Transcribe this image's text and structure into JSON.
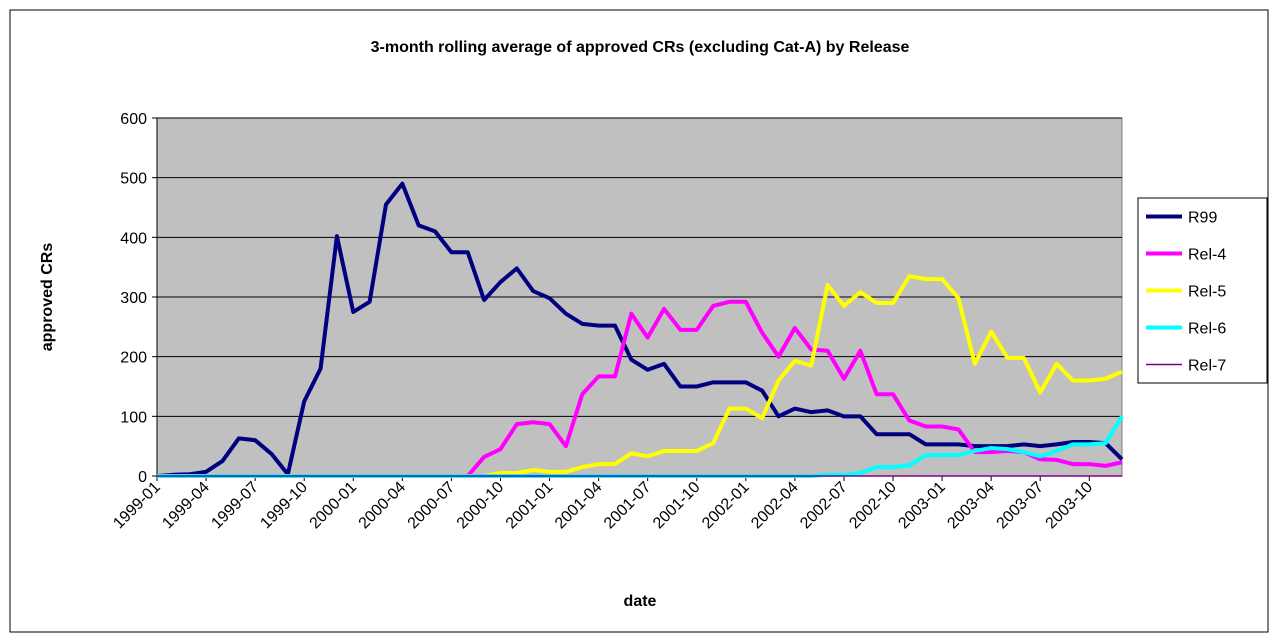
{
  "chart_data": {
    "type": "line",
    "title": "3-month rolling average of approved CRs (excluding Cat-A) by Release",
    "x_label": "date",
    "y_label": "approved CRs",
    "categories": [
      "1999-01",
      null,
      null,
      "1999-04",
      null,
      null,
      "1999-07",
      null,
      null,
      "1999-10",
      null,
      null,
      "2000-01",
      null,
      null,
      "2000-04",
      null,
      null,
      "2000-07",
      null,
      null,
      "2000-10",
      null,
      null,
      "2001-01",
      null,
      null,
      "2001-04",
      null,
      null,
      "2001-07",
      null,
      null,
      "2001-10",
      null,
      null,
      "2002-01",
      null,
      null,
      "2002-04",
      null,
      null,
      "2002-07",
      null,
      null,
      "2002-10",
      null,
      null,
      "2003-01",
      null,
      null,
      "2003-04",
      null,
      null,
      "2003-07",
      null,
      null,
      "2003-10",
      null,
      null
    ],
    "ylim": [
      0,
      600
    ],
    "yticks": [
      0,
      100,
      200,
      300,
      400,
      500,
      600
    ],
    "grid": true,
    "legend": "right",
    "series": [
      {
        "name": "R99",
        "color": "#000080",
        "width": 4,
        "values": [
          0,
          2,
          3,
          7,
          25,
          63,
          60,
          37,
          3,
          125,
          180,
          402,
          275,
          292,
          455,
          490,
          420,
          410,
          375,
          375,
          295,
          325,
          348,
          310,
          298,
          272,
          255,
          252,
          252,
          195,
          178,
          188,
          150,
          150,
          157,
          157,
          157,
          143,
          100,
          113,
          107,
          110,
          100,
          100,
          70,
          70,
          70,
          53,
          53,
          53,
          50,
          50,
          50,
          53,
          50,
          53,
          57,
          57,
          55,
          28
        ]
      },
      {
        "name": "Rel-4",
        "color": "#ff00ff",
        "width": 4,
        "values": [
          0,
          0,
          0,
          0,
          0,
          0,
          0,
          0,
          0,
          0,
          0,
          0,
          0,
          0,
          0,
          0,
          0,
          0,
          0,
          0,
          32,
          45,
          87,
          90,
          87,
          50,
          137,
          167,
          167,
          272,
          232,
          280,
          245,
          245,
          285,
          292,
          292,
          240,
          200,
          248,
          212,
          210,
          163,
          210,
          137,
          137,
          93,
          83,
          83,
          78,
          40,
          40,
          42,
          40,
          28,
          27,
          20,
          20,
          17,
          23
        ]
      },
      {
        "name": "Rel-5",
        "color": "#ffff00",
        "width": 4,
        "values": [
          0,
          0,
          0,
          0,
          0,
          0,
          0,
          0,
          0,
          0,
          0,
          0,
          0,
          0,
          0,
          0,
          0,
          0,
          0,
          0,
          0,
          5,
          5,
          10,
          7,
          7,
          15,
          20,
          20,
          38,
          33,
          42,
          42,
          42,
          55,
          113,
          113,
          97,
          160,
          193,
          185,
          320,
          285,
          308,
          290,
          290,
          335,
          330,
          330,
          298,
          188,
          242,
          198,
          198,
          140,
          188,
          160,
          160,
          163,
          175
        ]
      },
      {
        "name": "Rel-6",
        "color": "#00ffff",
        "width": 4,
        "values": [
          0,
          0,
          0,
          0,
          0,
          0,
          0,
          0,
          0,
          0,
          0,
          0,
          0,
          0,
          0,
          0,
          0,
          0,
          0,
          0,
          0,
          0,
          0,
          0,
          0,
          0,
          0,
          0,
          0,
          0,
          0,
          0,
          0,
          0,
          0,
          0,
          0,
          0,
          0,
          0,
          0,
          2,
          2,
          5,
          15,
          15,
          18,
          35,
          35,
          35,
          42,
          47,
          45,
          40,
          33,
          42,
          53,
          53,
          55,
          100
        ]
      },
      {
        "name": "Rel-7",
        "color": "#800080",
        "width": 1.5,
        "values": [
          0,
          0,
          0,
          0,
          0,
          0,
          0,
          0,
          0,
          0,
          0,
          0,
          0,
          0,
          0,
          0,
          0,
          0,
          0,
          0,
          0,
          0,
          0,
          0,
          0,
          0,
          0,
          0,
          0,
          0,
          0,
          0,
          0,
          0,
          0,
          0,
          0,
          0,
          0,
          0,
          0,
          0,
          0,
          0,
          0,
          0,
          0,
          0,
          0,
          0,
          0,
          0,
          0,
          0,
          0,
          0,
          0,
          0,
          0,
          0
        ]
      }
    ]
  }
}
